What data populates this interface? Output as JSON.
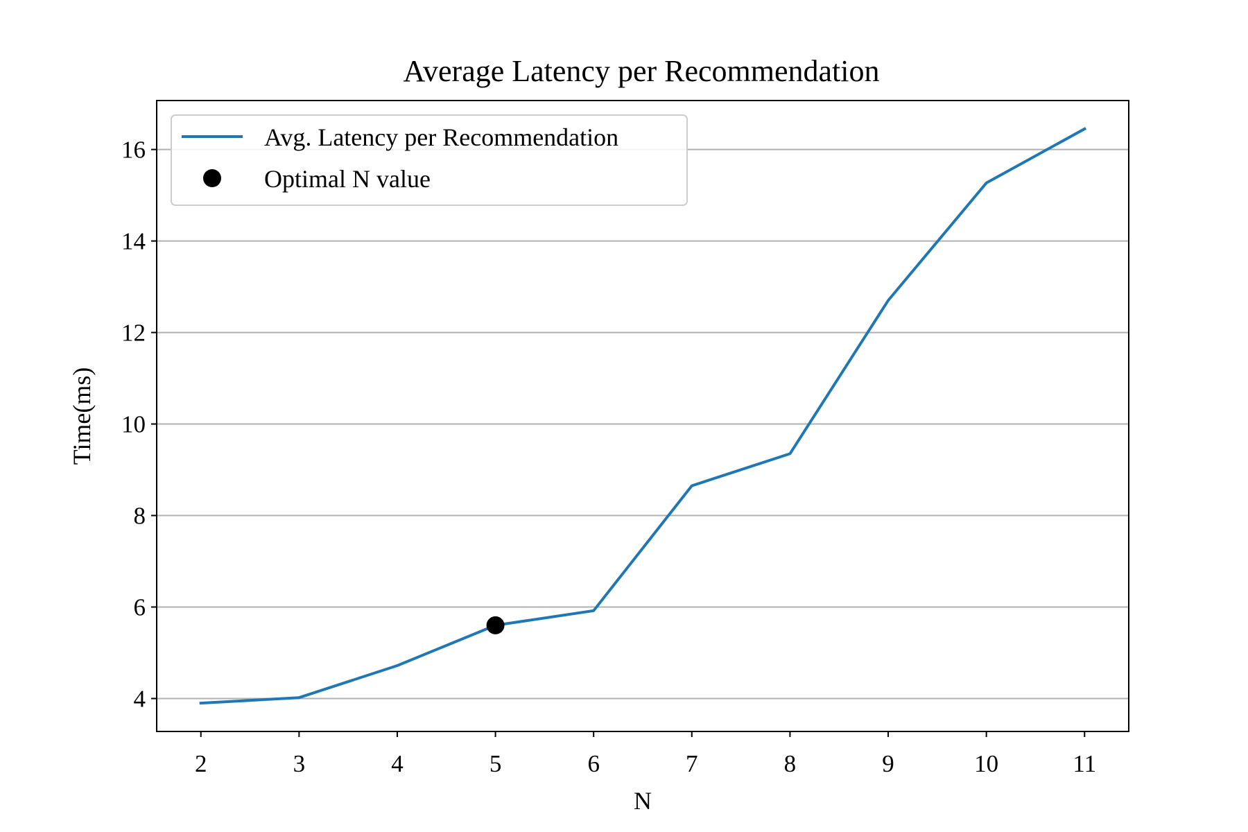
{
  "chart_data": {
    "type": "line",
    "title": "Average Latency per Recommendation",
    "xlabel": "N",
    "ylabel": "Time(ms)",
    "x": [
      2,
      3,
      4,
      5,
      6,
      7,
      8,
      9,
      10,
      11
    ],
    "x_ticks": [
      "2",
      "3",
      "4",
      "5",
      "6",
      "7",
      "8",
      "9",
      "10",
      "11"
    ],
    "y_ticks": [
      "4",
      "6",
      "8",
      "10",
      "12",
      "14",
      "16"
    ],
    "xlim": [
      1.55,
      11.45
    ],
    "ylim": [
      3.28,
      17.07
    ],
    "grid": "y-axis horizontal lines on",
    "legend_position": "top-left",
    "series": [
      {
        "name": "Avg. Latency per Recommendation",
        "color": "#1f77b4",
        "marker": "line",
        "values": [
          3.9,
          4.02,
          4.72,
          5.6,
          5.92,
          8.65,
          9.35,
          12.7,
          15.27,
          16.45
        ]
      },
      {
        "name": "Optimal N value",
        "color": "#000000",
        "marker": "point",
        "x": [
          5
        ],
        "values": [
          5.6
        ]
      }
    ]
  }
}
